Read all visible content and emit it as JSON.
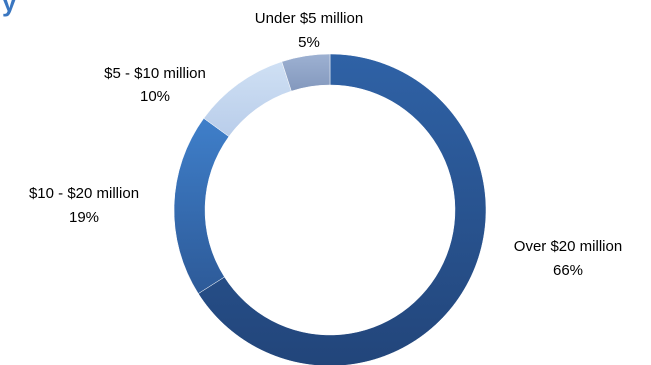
{
  "chart_data": {
    "type": "pie",
    "donut": true,
    "categories": [
      "Over $20 million",
      "$10 - $20 million",
      "$5 - $10 million",
      "Under $5 million"
    ],
    "values": [
      66,
      19,
      10,
      5
    ],
    "value_labels": [
      "66%",
      "19%",
      "10%",
      "5%"
    ],
    "colors": [
      "#2d5a98",
      "#3a76c0",
      "#c5d7ef",
      "#8ea4c8"
    ],
    "legend": "none"
  }
}
